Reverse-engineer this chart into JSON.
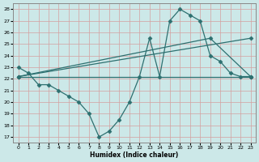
{
  "xlabel": "Humidex (Indice chaleur)",
  "xlim": [
    -0.5,
    23.5
  ],
  "ylim": [
    16.5,
    28.5
  ],
  "yticks": [
    17,
    18,
    19,
    20,
    21,
    22,
    23,
    24,
    25,
    26,
    27,
    28
  ],
  "xticks": [
    0,
    1,
    2,
    3,
    4,
    5,
    6,
    7,
    8,
    9,
    10,
    11,
    12,
    13,
    14,
    15,
    16,
    17,
    18,
    19,
    20,
    21,
    22,
    23
  ],
  "bg_color": "#cce8e8",
  "line_color": "#2d7070",
  "grid_color": "#d4a0a0",
  "lines": [
    {
      "x": [
        0,
        1,
        2,
        3,
        4,
        5,
        6,
        7,
        8,
        9,
        10,
        11,
        12,
        13,
        14,
        15,
        16,
        17,
        18,
        19,
        20,
        21,
        22,
        23
      ],
      "y": [
        23.0,
        22.5,
        21.5,
        21.5,
        21.0,
        20.5,
        20.0,
        19.0,
        17.0,
        17.5,
        18.5,
        20.0,
        22.2,
        25.5,
        22.2,
        27.0,
        28.0,
        27.5,
        27.0,
        24.0,
        23.5,
        22.5,
        22.2,
        22.2
      ]
    },
    {
      "x": [
        0,
        23
      ],
      "y": [
        22.2,
        22.2
      ]
    },
    {
      "x": [
        0,
        23
      ],
      "y": [
        22.2,
        25.5
      ]
    },
    {
      "comment": "arc line: 22 -> peak ~25.5 at x=19 -> 22.2",
      "x": [
        0,
        19,
        23
      ],
      "y": [
        22.2,
        25.5,
        22.2
      ]
    }
  ]
}
